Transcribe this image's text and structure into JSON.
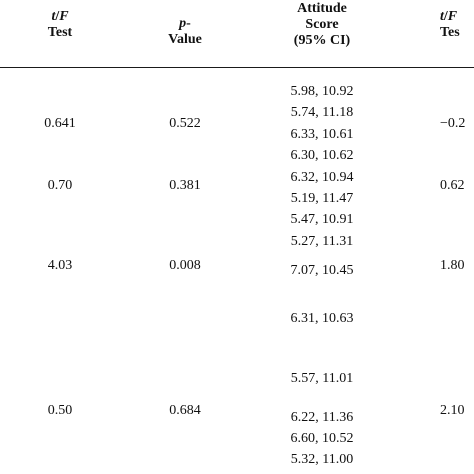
{
  "table": {
    "headers": {
      "tf": {
        "line1_italic_t": "t",
        "line1_slash": "/",
        "line1_italic_f": "F",
        "line2": "Test"
      },
      "p": {
        "line1_italic": "p",
        "line1_dash": "-",
        "line2": "Value"
      },
      "ci": {
        "line1": "Attitude",
        "line2": "Score",
        "line3": "(95% CI)"
      },
      "tf2": {
        "line1_italic_t": "t",
        "line1_slash": "/",
        "line1_italic_f": "F",
        "line2": "Tes"
      }
    },
    "groups": [
      {
        "tf": "0.641",
        "p": "0.522",
        "tf2": "−0.2"
      },
      {
        "tf": "0.70",
        "p": "0.381",
        "tf2": "0.62"
      },
      {
        "tf": "4.03",
        "p": "0.008",
        "tf2": "1.80"
      },
      {
        "tf": "0.50",
        "p": "0.684",
        "tf2": "2.10"
      }
    ],
    "ci_values": [
      "5.98, 10.92",
      "5.74, 11.18",
      "6.33, 10.61",
      "6.30, 10.62",
      "6.32, 10.94",
      "5.19, 11.47",
      "5.47, 10.91",
      "5.27, 11.31",
      "7.07, 10.45",
      "6.31, 10.63",
      "5.57, 11.01",
      "6.22, 11.36",
      "6.60, 10.52",
      "5.32, 11.00"
    ]
  }
}
